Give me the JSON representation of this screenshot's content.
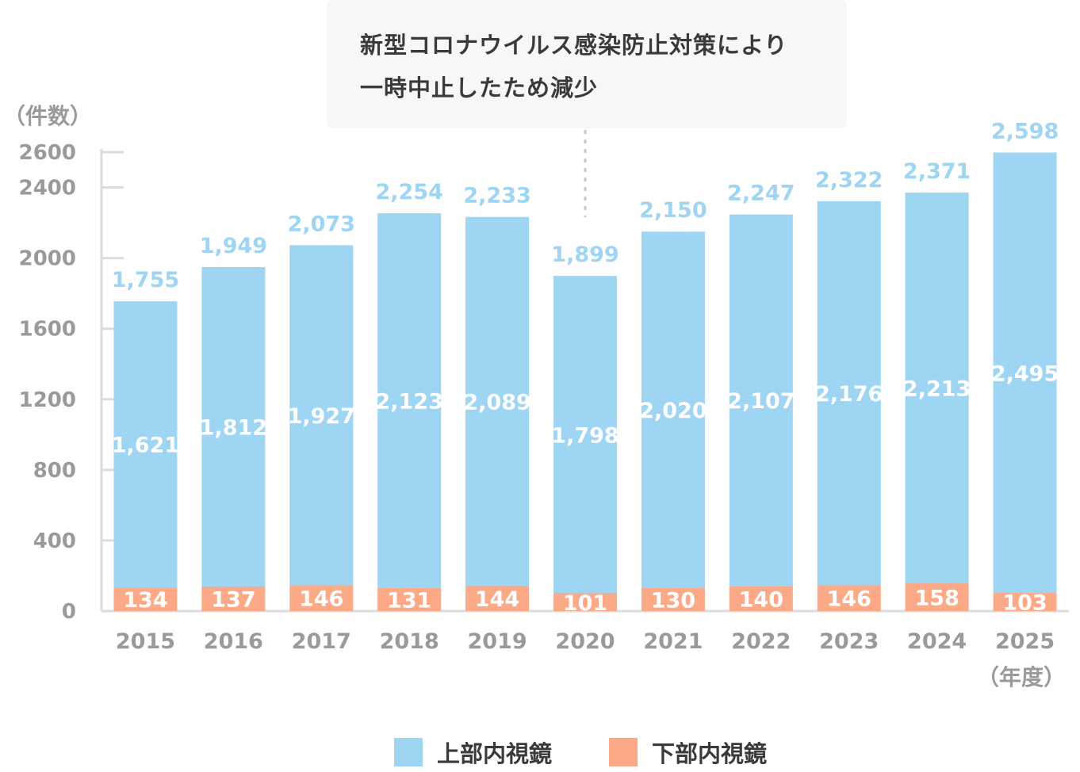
{
  "chart_data": {
    "type": "bar",
    "stacked": true,
    "categories": [
      "2015",
      "2016",
      "2017",
      "2018",
      "2019",
      "2020",
      "2021",
      "2022",
      "2023",
      "2024",
      "2025"
    ],
    "series": [
      {
        "name": "下部内視鏡",
        "color": "#fca987",
        "values": [
          134,
          137,
          146,
          131,
          144,
          101,
          130,
          140,
          146,
          158,
          103
        ]
      },
      {
        "name": "上部内視鏡",
        "color": "#9dd5f3",
        "values": [
          1621,
          1812,
          1927,
          2123,
          2089,
          1798,
          2020,
          2107,
          2176,
          2213,
          2495
        ]
      }
    ],
    "totals": [
      "1,755",
      "1,949",
      "2,073",
      "2,254",
      "2,233",
      "1,899",
      "2,150",
      "2,247",
      "2,322",
      "2,371",
      "2,598"
    ],
    "upper_labels": [
      "1,621",
      "1,812",
      "1,927",
      "2,123",
      "2,089",
      "1,798",
      "2,020",
      "2,107",
      "2,176",
      "2,213",
      "2,495"
    ],
    "lower_labels": [
      "134",
      "137",
      "146",
      "131",
      "144",
      "101",
      "130",
      "140",
      "146",
      "158",
      "103"
    ],
    "ylabel": "（件数）",
    "xlabel": "（年度）",
    "ylim": [
      0,
      2600
    ],
    "yticks": [
      0,
      400,
      800,
      1200,
      1600,
      2000,
      2400,
      2600
    ],
    "grid": false,
    "legend_position": "bottom"
  },
  "annotation": {
    "lines": [
      "新型コロナウイルス感染防止対策により",
      "一時中止したため減少"
    ],
    "target_category": "2020"
  },
  "colors": {
    "upper": "#9dd5f3",
    "lower": "#fca987",
    "total_label": "#9dd5f3",
    "inner_label": "#ffffff",
    "axis": "#dcdcdc",
    "tick_text": "#9a9a9a"
  }
}
